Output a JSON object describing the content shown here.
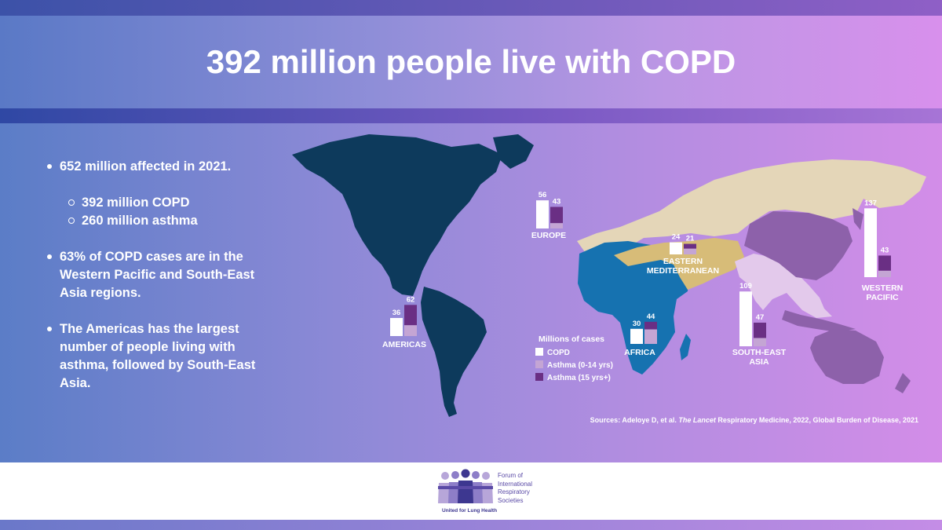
{
  "title": "392 million people live with COPD",
  "bullets": {
    "b1": "652 million affected in 2021.",
    "b1_sub1": "392 million COPD",
    "b1_sub2": "260 million asthma",
    "b2": "63% of COPD cases are in the Western Pacific and South-East Asia regions.",
    "b3": "The Americas has the largest number of people living with asthma, followed by South-East Asia."
  },
  "legend": {
    "title": "Millions of cases",
    "items": [
      {
        "label": "COPD",
        "color": "#ffffff"
      },
      {
        "label": "Asthma (0-14 yrs)",
        "color": "#c4a5d4"
      },
      {
        "label": "Asthma (15 yrs+)",
        "color": "#6a2f84"
      }
    ]
  },
  "sources": {
    "prefix": "Sources: Adeloye D, et al. ",
    "journal": "The Lancet",
    "suffix": " Respiratory Medicine, 2022, Global Burden of Disease, 2021"
  },
  "logo": {
    "lines": [
      "Forum of",
      "International",
      "Respiratory",
      "Societies"
    ],
    "tagline": "United for Lung Health"
  },
  "colors": {
    "americas": "#0d3a5c",
    "europe": "#e4d6b8",
    "africa": "#1672b0",
    "eastern_med": "#d7bc78",
    "south_east_asia": "#e3c9eb",
    "western_pacific": "#8d61aa",
    "copd": "#ffffff",
    "asthma_child": "#c4a5d4",
    "asthma_adult": "#6a2f84"
  },
  "chart_data": {
    "type": "bar",
    "title": "392 million people live with COPD",
    "unit": "Millions of cases",
    "categories": [
      "AMERICAS",
      "EUROPE",
      "AFRICA",
      "EASTERN MEDITERRANEAN",
      "SOUTH-EAST ASIA",
      "WESTERN PACIFIC"
    ],
    "series": [
      {
        "name": "COPD",
        "values": [
          36,
          56,
          30,
          24,
          109,
          137
        ]
      },
      {
        "name": "Asthma",
        "values": [
          62,
          43,
          44,
          21,
          47,
          43
        ]
      }
    ],
    "asthma_breakdown": [
      {
        "category": "AMERICAS",
        "child_fraction": 0.35
      },
      {
        "category": "EUROPE",
        "child_fraction": 0.25
      },
      {
        "category": "AFRICA",
        "child_fraction": 0.66
      },
      {
        "category": "EASTERN MEDITERRANEAN",
        "child_fraction": 0.55
      },
      {
        "category": "SOUTH-EAST ASIA",
        "child_fraction": 0.35
      },
      {
        "category": "WESTERN PACIFIC",
        "child_fraction": 0.3
      }
    ],
    "region_labels": [
      {
        "category": "AMERICAS",
        "lines": [
          "AMERICAS"
        ]
      },
      {
        "category": "EUROPE",
        "lines": [
          "EUROPE"
        ]
      },
      {
        "category": "AFRICA",
        "lines": [
          "AFRICA"
        ]
      },
      {
        "category": "EASTERN MEDITERRANEAN",
        "lines": [
          "EASTERN",
          "MEDITERRANEAN"
        ]
      },
      {
        "category": "SOUTH-EAST ASIA",
        "lines": [
          "SOUTH-EAST",
          "ASIA"
        ]
      },
      {
        "category": "WESTERN PACIFIC",
        "lines": [
          "WESTERN",
          "PACIFIC"
        ]
      }
    ]
  }
}
